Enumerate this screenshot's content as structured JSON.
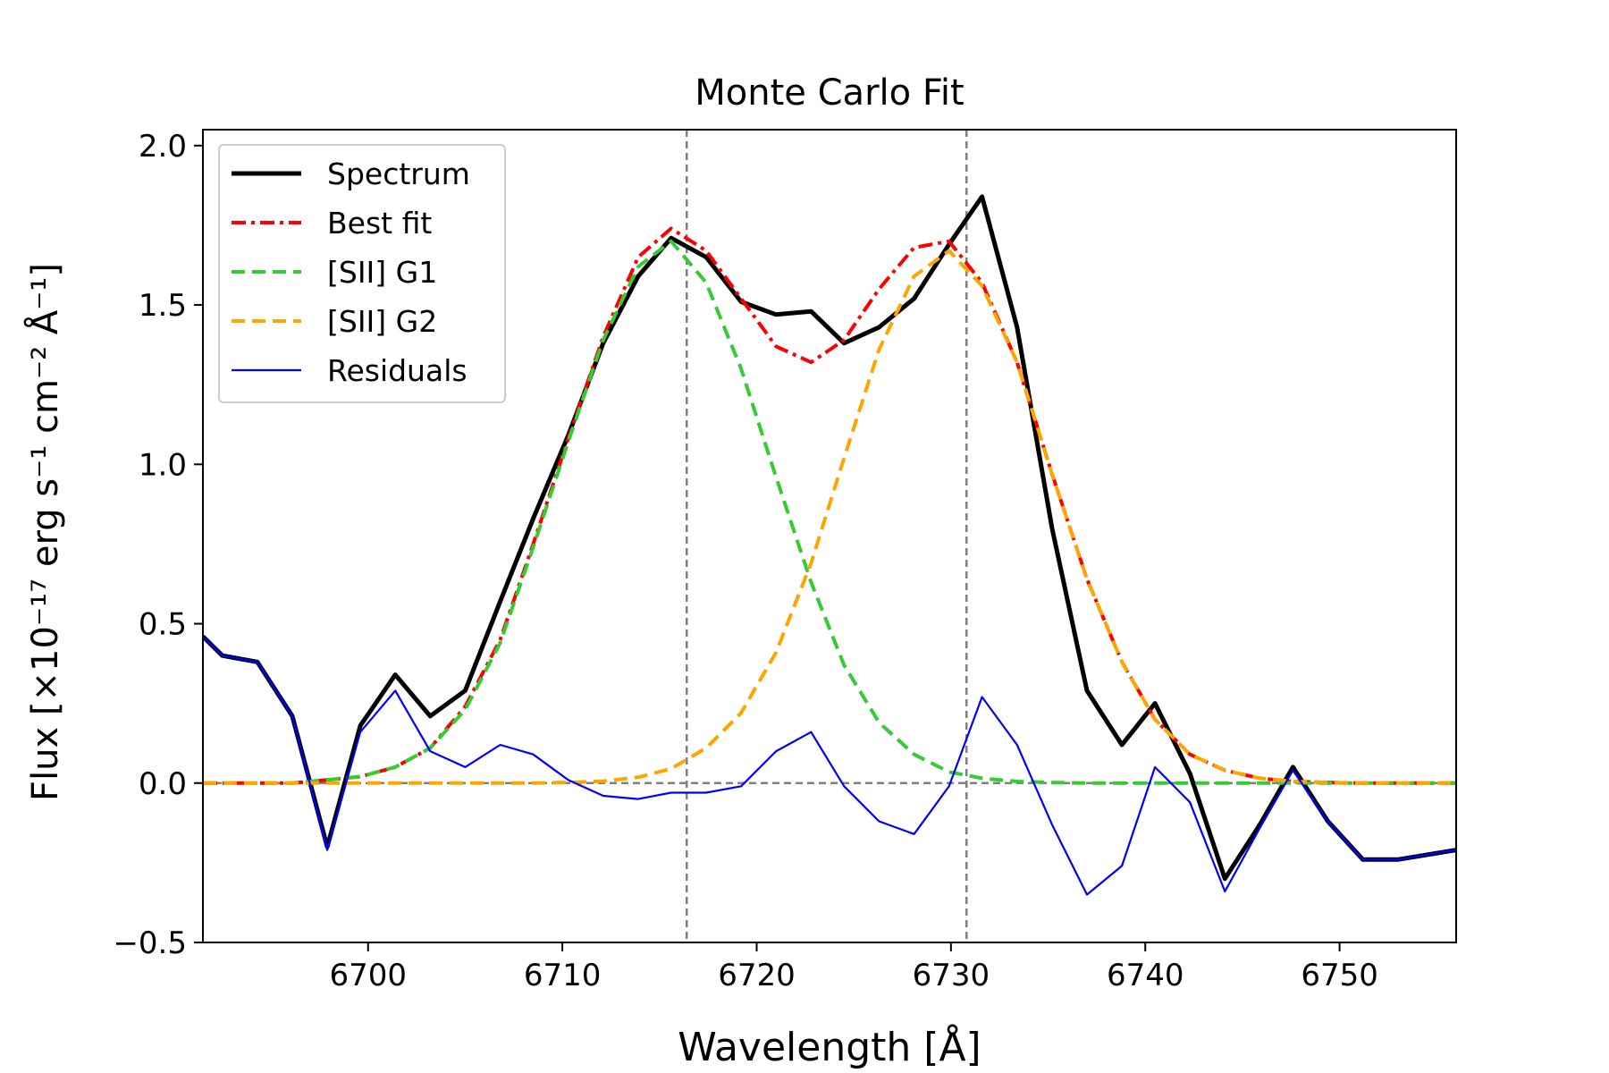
{
  "chart_data": {
    "type": "line",
    "title": "Monte Carlo Fit",
    "xlabel": "Wavelength [Å]",
    "ylabel": "Flux [×10⁻¹⁷ erg s⁻¹ cm⁻² Å⁻¹]",
    "xlim": [
      6691.5,
      6756
    ],
    "ylim": [
      -0.5,
      2.05
    ],
    "xticks": [
      6700,
      6710,
      6720,
      6730,
      6740,
      6750
    ],
    "yticks": [
      -0.5,
      0.0,
      0.5,
      1.0,
      1.5,
      2.0
    ],
    "xtick_labels": [
      "6700",
      "6710",
      "6720",
      "6730",
      "6740",
      "6750"
    ],
    "ytick_labels": [
      "−0.5",
      "0.0",
      "0.5",
      "1.0",
      "1.5",
      "2.0"
    ],
    "legend_position": "top-left",
    "grid": false,
    "vlines": [
      6716.4,
      6730.8
    ],
    "hline": 0.0,
    "series": [
      {
        "name": "Spectrum",
        "color": "#000000",
        "style": "solid",
        "x": [
          6691.5,
          6692.5,
          6694.3,
          6696.1,
          6697.9,
          6699.6,
          6701.4,
          6703.2,
          6705.0,
          6706.8,
          6708.5,
          6710.3,
          6712.1,
          6713.9,
          6715.6,
          6717.4,
          6719.2,
          6721.0,
          6722.8,
          6724.5,
          6726.3,
          6728.1,
          6729.9,
          6731.6,
          6733.4,
          6735.2,
          6737.0,
          6738.8,
          6740.5,
          6742.3,
          6744.1,
          6745.9,
          6747.6,
          6749.4,
          6751.2,
          6753.0,
          6756.0
        ],
        "y": [
          0.46,
          0.4,
          0.38,
          0.21,
          -0.2,
          0.18,
          0.34,
          0.21,
          0.29,
          0.57,
          0.83,
          1.09,
          1.38,
          1.59,
          1.71,
          1.65,
          1.51,
          1.47,
          1.48,
          1.38,
          1.43,
          1.52,
          1.69,
          1.84,
          1.43,
          0.8,
          0.29,
          0.12,
          0.25,
          0.03,
          -0.3,
          -0.13,
          0.05,
          -0.12,
          -0.24,
          -0.24,
          -0.21
        ]
      },
      {
        "name": "Best fit",
        "color": "#ff0000",
        "style": "dashdot",
        "x": [
          6691.5,
          6694.3,
          6696.1,
          6697.9,
          6699.6,
          6701.4,
          6703.2,
          6705.0,
          6706.8,
          6708.5,
          6710.3,
          6712.1,
          6713.9,
          6715.6,
          6717.4,
          6719.2,
          6721.0,
          6722.8,
          6724.5,
          6726.3,
          6728.1,
          6729.9,
          6731.6,
          6733.4,
          6735.2,
          6737.0,
          6738.8,
          6740.5,
          6742.3,
          6744.1,
          6745.9,
          6747.6,
          6749.4,
          6751.2,
          6753.0,
          6756.0
        ],
        "y": [
          0.0,
          0.0,
          0.0,
          0.01,
          0.02,
          0.05,
          0.11,
          0.24,
          0.45,
          0.75,
          1.08,
          1.4,
          1.65,
          1.74,
          1.67,
          1.52,
          1.37,
          1.32,
          1.39,
          1.55,
          1.68,
          1.7,
          1.57,
          1.32,
          0.97,
          0.64,
          0.38,
          0.2,
          0.09,
          0.04,
          0.015,
          0.005,
          0.002,
          0.0,
          0.0,
          0.0
        ]
      },
      {
        "name": "[SII] G1",
        "color": "#33cc33",
        "style": "dashed",
        "x": [
          6691.5,
          6694.3,
          6696.1,
          6697.9,
          6699.6,
          6701.4,
          6703.2,
          6705.0,
          6706.8,
          6708.5,
          6710.3,
          6712.1,
          6713.9,
          6715.6,
          6717.4,
          6719.2,
          6721.0,
          6722.8,
          6724.5,
          6726.3,
          6728.1,
          6729.9,
          6731.6,
          6733.4,
          6735.2,
          6737.0,
          6738.8,
          6740.5,
          6742.3,
          6744.1,
          6745.9,
          6747.6,
          6749.4,
          6751.2,
          6753.0,
          6756.0
        ],
        "y": [
          0.0,
          0.0,
          0.0,
          0.01,
          0.02,
          0.05,
          0.11,
          0.23,
          0.44,
          0.74,
          1.07,
          1.39,
          1.62,
          1.7,
          1.57,
          1.3,
          0.96,
          0.63,
          0.37,
          0.19,
          0.09,
          0.035,
          0.015,
          0.005,
          0.002,
          0.0,
          0.0,
          0.0,
          0.0,
          0.0,
          0.0,
          0.0,
          0.0,
          0.0,
          0.0,
          0.0
        ]
      },
      {
        "name": "[SII] G2",
        "color": "#ffa500",
        "style": "dashed",
        "x": [
          6691.5,
          6694.3,
          6696.1,
          6697.9,
          6699.6,
          6701.4,
          6703.2,
          6705.0,
          6706.8,
          6708.5,
          6710.3,
          6712.1,
          6713.9,
          6715.6,
          6717.4,
          6719.2,
          6721.0,
          6722.8,
          6724.5,
          6726.3,
          6728.1,
          6729.9,
          6731.6,
          6733.4,
          6735.2,
          6737.0,
          6738.8,
          6740.5,
          6742.3,
          6744.1,
          6745.9,
          6747.6,
          6749.4,
          6751.2,
          6753.0,
          6756.0
        ],
        "y": [
          0.0,
          0.0,
          0.0,
          0.0,
          0.0,
          0.0,
          0.0,
          0.0,
          0.0,
          0.0,
          0.002,
          0.006,
          0.018,
          0.045,
          0.11,
          0.22,
          0.41,
          0.69,
          1.02,
          1.36,
          1.59,
          1.67,
          1.56,
          1.32,
          0.97,
          0.64,
          0.38,
          0.2,
          0.09,
          0.04,
          0.015,
          0.005,
          0.002,
          0.0,
          0.0,
          0.0
        ]
      },
      {
        "name": "Residuals",
        "color": "#0000ff",
        "style": "solid-thin",
        "x": [
          6691.5,
          6692.5,
          6694.3,
          6696.1,
          6697.9,
          6699.6,
          6701.4,
          6703.2,
          6705.0,
          6706.8,
          6708.5,
          6710.3,
          6712.1,
          6713.9,
          6715.6,
          6717.4,
          6719.2,
          6721.0,
          6722.8,
          6724.5,
          6726.3,
          6728.1,
          6729.9,
          6731.6,
          6733.4,
          6735.2,
          6737.0,
          6738.8,
          6740.5,
          6742.3,
          6744.1,
          6745.9,
          6747.6,
          6749.4,
          6751.2,
          6753.0,
          6756.0
        ],
        "y": [
          0.46,
          0.4,
          0.38,
          0.21,
          -0.21,
          0.16,
          0.29,
          0.1,
          0.05,
          0.12,
          0.09,
          0.01,
          -0.04,
          -0.05,
          -0.03,
          -0.03,
          -0.01,
          0.1,
          0.16,
          -0.01,
          -0.12,
          -0.16,
          -0.01,
          0.27,
          0.12,
          -0.13,
          -0.35,
          -0.26,
          0.05,
          -0.06,
          -0.34,
          -0.14,
          0.04,
          -0.12,
          -0.24,
          -0.24,
          -0.21
        ]
      }
    ]
  }
}
